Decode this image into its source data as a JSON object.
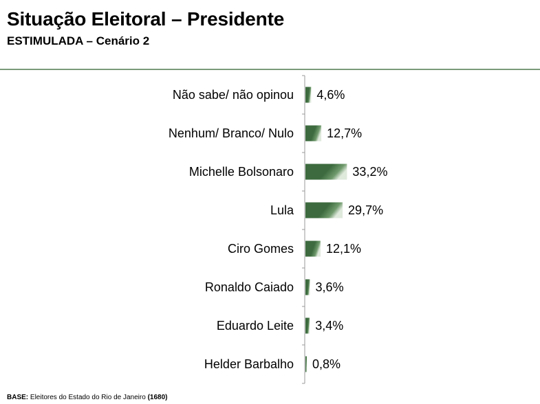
{
  "header": {
    "title": "Situação Eleitoral – Presidente",
    "subtitle": "ESTIMULADA – Cenário 2"
  },
  "footer": {
    "base_label": "BASE:",
    "base_text": " Eleitores do Estado do Rio de Janeiro ",
    "base_count": "(1680)"
  },
  "colors": {
    "bar_dark": "#3d6b3f",
    "bar_light": "#dfe9dc",
    "rule": "#7a9a78"
  },
  "chart_data": {
    "type": "bar",
    "orientation": "horizontal",
    "title": "Situação Eleitoral – Presidente",
    "subtitle": "ESTIMULADA – Cenário 2",
    "categories": [
      "Não sabe/ não opinou",
      "Nenhum/ Branco/ Nulo",
      "Michelle Bolsonaro",
      "Lula",
      "Ciro Gomes",
      "Ronaldo Caiado",
      "Eduardo Leite",
      "Helder Barbalho"
    ],
    "values": [
      4.6,
      12.7,
      33.2,
      29.7,
      12.1,
      3.6,
      3.4,
      0.8
    ],
    "value_labels": [
      "4,6%",
      "12,7%",
      "33,2%",
      "29,7%",
      "12,1%",
      "3,6%",
      "3,4%",
      "0,8%"
    ],
    "unit": "%",
    "xlim": [
      0,
      100
    ],
    "grid": false,
    "legend": "none"
  }
}
